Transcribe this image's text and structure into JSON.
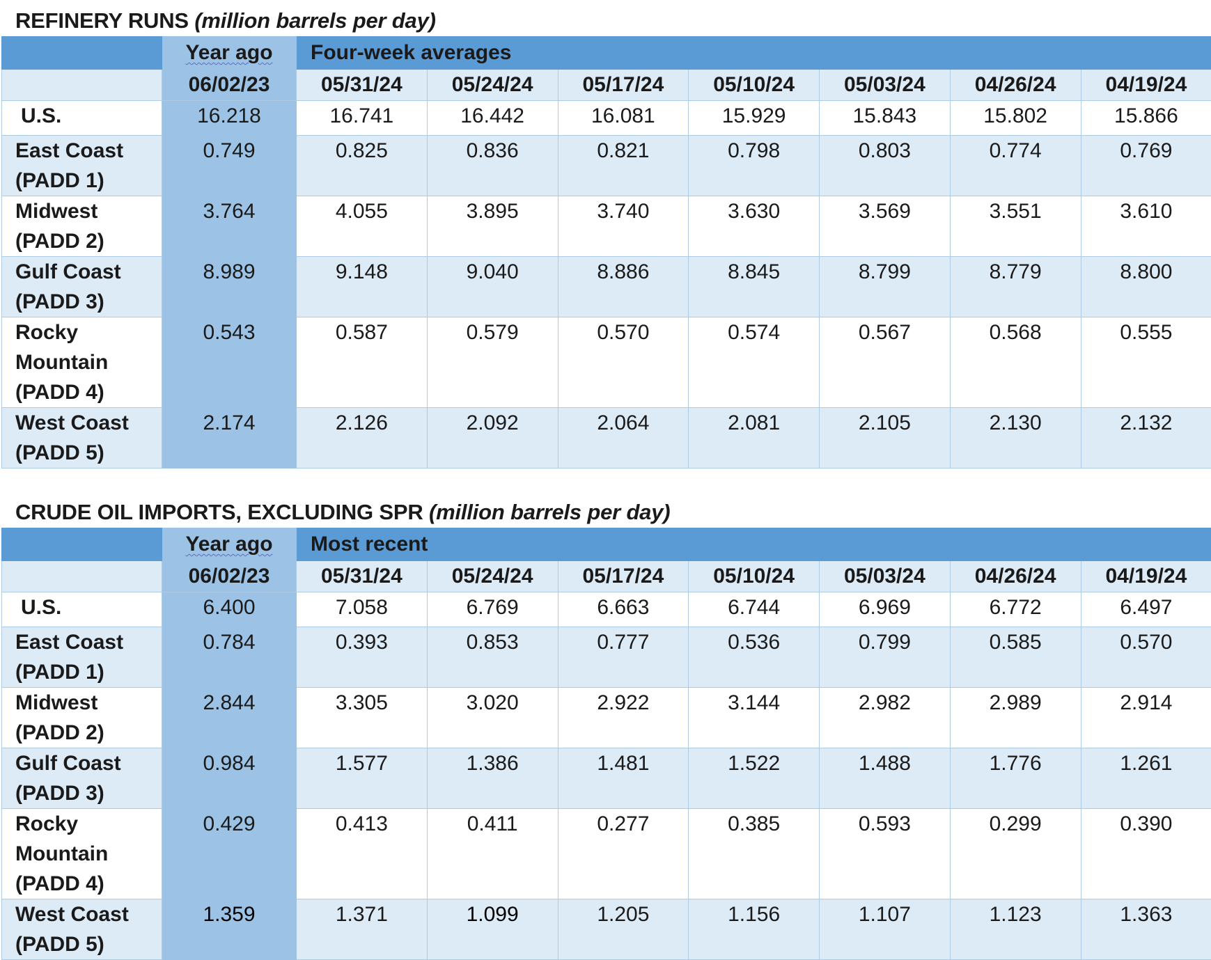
{
  "refinery": {
    "title": "REFINERY RUNS",
    "unit": "(million barrels per day)",
    "year_ago_label": "Year ago",
    "group_label": "Four-week averages",
    "dates": [
      "06/02/23",
      "05/31/24",
      "05/24/24",
      "05/17/24",
      "05/10/24",
      "05/03/24",
      "04/26/24",
      "04/19/24"
    ],
    "rows": [
      {
        "label": "U.S.",
        "values": [
          "16.218",
          "16.741",
          "16.442",
          "16.081",
          "15.929",
          "15.843",
          "15.802",
          "15.866"
        ]
      },
      {
        "label": "East Coast (PADD 1)",
        "values": [
          "0.749",
          "0.825",
          "0.836",
          "0.821",
          "0.798",
          "0.803",
          "0.774",
          "0.769"
        ]
      },
      {
        "label": "Midwest (PADD 2)",
        "values": [
          "3.764",
          "4.055",
          "3.895",
          "3.740",
          "3.630",
          "3.569",
          "3.551",
          "3.610"
        ]
      },
      {
        "label": "Gulf Coast (PADD 3)",
        "values": [
          "8.989",
          "9.148",
          "9.040",
          "8.886",
          "8.845",
          "8.799",
          "8.779",
          "8.800"
        ]
      },
      {
        "label": "Rocky Mountain (PADD 4)",
        "values": [
          "0.543",
          "0.587",
          "0.579",
          "0.570",
          "0.574",
          "0.567",
          "0.568",
          "0.555"
        ]
      },
      {
        "label": "West Coast (PADD 5)",
        "values": [
          "2.174",
          "2.126",
          "2.092",
          "2.064",
          "2.081",
          "2.105",
          "2.130",
          "2.132"
        ]
      }
    ]
  },
  "imports": {
    "title": "CRUDE OIL IMPORTS, EXCLUDING SPR",
    "unit": "(million barrels per day)",
    "year_ago_label": "Year ago",
    "group_label": "Most recent",
    "dates": [
      "06/02/23",
      "05/31/24",
      "05/24/24",
      "05/17/24",
      "05/10/24",
      "05/03/24",
      "04/26/24",
      "04/19/24"
    ],
    "rows": [
      {
        "label": "U.S.",
        "values": [
          "6.400",
          "7.058",
          "6.769",
          "6.663",
          "6.744",
          "6.969",
          "6.772",
          "6.497"
        ]
      },
      {
        "label": "East Coast (PADD 1)",
        "values": [
          "0.784",
          "0.393",
          "0.853",
          "0.777",
          "0.536",
          "0.799",
          "0.585",
          "0.570"
        ]
      },
      {
        "label": "Midwest (PADD 2)",
        "values": [
          "2.844",
          "3.305",
          "3.020",
          "2.922",
          "3.144",
          "2.982",
          "2.989",
          "2.914"
        ]
      },
      {
        "label": "Gulf Coast (PADD 3)",
        "values": [
          "0.984",
          "1.577",
          "1.386",
          "1.481",
          "1.522",
          "1.488",
          "1.776",
          "1.261"
        ]
      },
      {
        "label": "Rocky Mountain (PADD 4)",
        "values": [
          "0.429",
          "0.413",
          "0.411",
          "0.277",
          "0.385",
          "0.593",
          "0.299",
          "0.390"
        ]
      },
      {
        "label": "West Coast (PADD 5)",
        "values": [
          "1.359",
          "1.371",
          "1.099",
          "1.205",
          "1.156",
          "1.107",
          "1.123",
          "1.363"
        ]
      }
    ]
  }
}
